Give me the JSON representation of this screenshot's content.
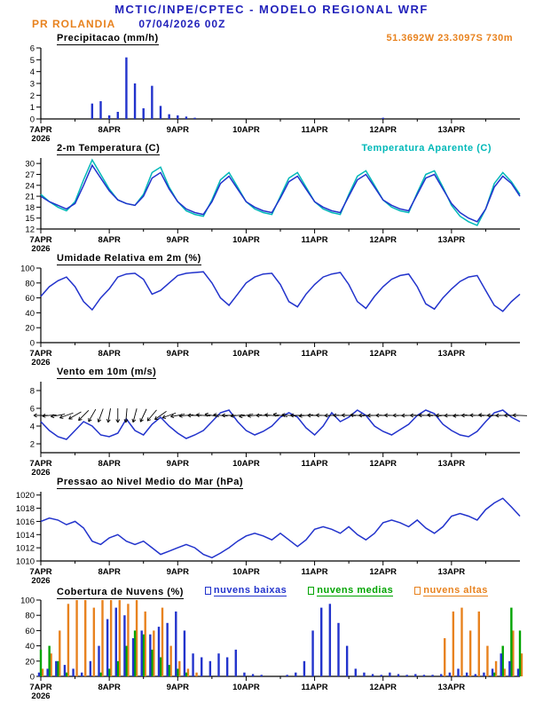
{
  "header": {
    "title": "MCTIC/INPE/CPTEC - MODELO REGIONAL WRF",
    "station": "PR ROLANDIA",
    "run": "07/04/2026 00Z",
    "location": "51.3692W 23.3097S 730m"
  },
  "colors": {
    "title_blue": "#2222bb",
    "orange": "#e8821e",
    "cyan": "#00b8b8",
    "line_blue": "#2233cc",
    "green": "#00a400",
    "black": "#000000"
  },
  "axis": {
    "hours_max": 168,
    "step_hours": 3,
    "xticks": [
      {
        "hour": 0,
        "label": "7APR",
        "sub": "2026"
      },
      {
        "hour": 24,
        "label": "8APR"
      },
      {
        "hour": 48,
        "label": "9APR"
      },
      {
        "hour": 72,
        "label": "10APR"
      },
      {
        "hour": 96,
        "label": "11APR"
      },
      {
        "hour": 120,
        "label": "12APR"
      },
      {
        "hour": 144,
        "label": "13APR"
      }
    ]
  },
  "chart_data": [
    {
      "type": "bar",
      "title": "Precipitacao (mm/h)",
      "ylim": [
        0,
        6
      ],
      "yticks": [
        0,
        1,
        2,
        3,
        4,
        5,
        6
      ],
      "series": [
        {
          "name": "precipitacao",
          "style": "bars",
          "color": "#2233cc",
          "offset": 0,
          "values": [
            0,
            0,
            0,
            0,
            0,
            0,
            1.3,
            1.5,
            0.3,
            0.6,
            5.2,
            3,
            0.9,
            2.8,
            1.1,
            0.4,
            0.3,
            0.2,
            0.1,
            0,
            0,
            0,
            0,
            0,
            0,
            0,
            0,
            0,
            0,
            0,
            0,
            0,
            0,
            0,
            0,
            0,
            0,
            0,
            0,
            0,
            0.1,
            0,
            0,
            0,
            0,
            0,
            0,
            0,
            0,
            0,
            0,
            0,
            0,
            0,
            0,
            0,
            0
          ]
        }
      ]
    },
    {
      "type": "line",
      "title": "2-m Temperatura (C)",
      "legend": "Temperatura Aparente (C)",
      "ylim": [
        12,
        31.5
      ],
      "yticks": [
        12,
        15,
        18,
        21,
        24,
        27,
        30
      ],
      "series": [
        {
          "name": "temperatura aparente",
          "style": "line",
          "color": "#00b8b8",
          "values": [
            21.5,
            19.5,
            18,
            17,
            19.5,
            25.5,
            31,
            27,
            23,
            20,
            19,
            18.5,
            21.5,
            27.5,
            29,
            23.5,
            19.5,
            17,
            16,
            15.5,
            20,
            25.5,
            27.5,
            23.5,
            19.5,
            17.5,
            16.5,
            16,
            21,
            26,
            27.5,
            23.5,
            19.5,
            17.5,
            16.5,
            16,
            21.5,
            26.5,
            28,
            24,
            20,
            18,
            17,
            16.5,
            22,
            27,
            28,
            23.5,
            18.5,
            15.5,
            14,
            13,
            17.5,
            24.5,
            27.5,
            25,
            21.5
          ]
        },
        {
          "name": "2-m temperatura",
          "style": "line",
          "color": "#2233cc",
          "values": [
            21,
            19.5,
            18.5,
            17.5,
            19,
            24,
            29.5,
            26,
            22.5,
            20,
            19,
            18.5,
            21,
            26,
            27.5,
            23,
            19.5,
            17.5,
            16.5,
            16,
            19.5,
            24.5,
            26.5,
            23,
            19.5,
            18,
            17,
            16.5,
            20.5,
            25,
            26.5,
            23,
            19.5,
            18,
            17,
            16.5,
            21,
            25.5,
            27,
            23.5,
            20,
            18.5,
            17.5,
            17,
            21.5,
            26,
            27,
            23,
            19,
            16.5,
            15,
            14,
            17.5,
            23.5,
            26.5,
            24.5,
            21
          ]
        }
      ]
    },
    {
      "type": "line",
      "title": "Umidade Relativa em 2m (%)",
      "ylim": [
        0,
        100
      ],
      "yticks": [
        0,
        20,
        40,
        60,
        80,
        100
      ],
      "series": [
        {
          "name": "umidade relativa",
          "style": "line",
          "color": "#2233cc",
          "values": [
            62,
            75,
            83,
            88,
            75,
            55,
            44,
            60,
            72,
            88,
            92,
            93,
            85,
            65,
            70,
            80,
            90,
            93,
            94,
            95,
            80,
            60,
            50,
            65,
            80,
            88,
            92,
            93,
            78,
            55,
            48,
            65,
            78,
            88,
            92,
            94,
            78,
            55,
            46,
            62,
            75,
            85,
            90,
            92,
            75,
            52,
            45,
            60,
            72,
            82,
            88,
            90,
            70,
            50,
            42,
            55,
            65
          ]
        }
      ]
    },
    {
      "type": "line",
      "title": "Vento em 10m (m/s)",
      "ylim": [
        1,
        9
      ],
      "yticks": [
        2,
        4,
        6,
        8
      ],
      "series": [
        {
          "name": "velocidade do vento",
          "style": "line",
          "color": "#2233cc",
          "values": [
            4.5,
            3.5,
            2.8,
            2.5,
            3.5,
            4.5,
            4,
            3,
            2.8,
            3.2,
            4.8,
            3.5,
            3,
            4.2,
            5,
            4,
            3.2,
            2.6,
            3,
            3.5,
            4.5,
            5.5,
            5.8,
            4.5,
            3.5,
            3,
            3.4,
            4,
            5,
            5.5,
            5,
            3.8,
            3,
            4,
            5.5,
            4.5,
            5,
            5.8,
            5.2,
            4,
            3.4,
            3,
            3.6,
            4.2,
            5.2,
            5.8,
            5.4,
            4.2,
            3.5,
            3,
            2.8,
            3.4,
            4.5,
            5.5,
            5.8,
            5,
            4.5
          ]
        },
        {
          "name": "direcao do vento",
          "style": "arrows",
          "color": "#000000",
          "anchor": 5.2,
          "values": [
            180,
            185,
            190,
            200,
            210,
            225,
            240,
            250,
            260,
            270,
            265,
            255,
            245,
            230,
            215,
            200,
            190,
            185,
            180,
            175,
            170,
            175,
            180,
            185,
            190,
            185,
            180,
            175,
            170,
            175,
            180,
            185,
            180,
            178,
            182,
            180,
            178,
            176,
            180,
            182,
            180,
            178,
            180,
            182,
            180,
            178,
            176,
            180,
            182,
            184,
            180,
            178,
            176,
            180,
            182,
            180,
            178
          ]
        }
      ]
    },
    {
      "type": "line",
      "title": "Pressao ao Nivel Medio do Mar (hPa)",
      "ylim": [
        1010,
        1020.5
      ],
      "yticks": [
        1010,
        1012,
        1014,
        1016,
        1018,
        1020
      ],
      "series": [
        {
          "name": "pressao ao nivel medio do mar",
          "style": "line",
          "color": "#2233cc",
          "values": [
            1016,
            1016.5,
            1016.2,
            1015.5,
            1016,
            1015,
            1013,
            1012.5,
            1013.5,
            1014,
            1013,
            1012.5,
            1013,
            1012,
            1011,
            1011.5,
            1012,
            1012.5,
            1012,
            1011,
            1010.5,
            1011.2,
            1012,
            1013,
            1013.8,
            1014.2,
            1013.8,
            1013.2,
            1014.2,
            1013.2,
            1012.2,
            1013.2,
            1014.8,
            1015.2,
            1014.8,
            1014.2,
            1015.2,
            1014,
            1013.2,
            1014.2,
            1015.8,
            1016.2,
            1015.8,
            1015.2,
            1016.2,
            1015,
            1014.2,
            1015.2,
            1016.8,
            1017.2,
            1016.8,
            1016.2,
            1017.8,
            1018.8,
            1019.5,
            1018.2,
            1016.8
          ]
        }
      ]
    },
    {
      "type": "bar",
      "title": "Cobertura de Nuvens (%)",
      "ylim": [
        0,
        100
      ],
      "yticks": [
        0,
        20,
        40,
        60,
        80,
        100
      ],
      "series": [
        {
          "name": "nuvens altas",
          "style": "bars",
          "color": "#e8821e",
          "offset": 2,
          "values": [
            10,
            30,
            60,
            95,
            100,
            100,
            90,
            100,
            100,
            100,
            95,
            100,
            85,
            60,
            90,
            40,
            20,
            10,
            5,
            0,
            0,
            0,
            0,
            0,
            0,
            0,
            0,
            0,
            0,
            0,
            0,
            0,
            0,
            0,
            0,
            0,
            0,
            0,
            0,
            0,
            0,
            0,
            0,
            0,
            0,
            0,
            0,
            50,
            85,
            90,
            60,
            85,
            40,
            20,
            10,
            60,
            30
          ]
        },
        {
          "name": "nuvens medias",
          "style": "bars",
          "color": "#00a400",
          "offset": 0,
          "values": [
            35,
            40,
            20,
            5,
            0,
            0,
            0,
            5,
            10,
            20,
            40,
            60,
            55,
            35,
            25,
            15,
            10,
            5,
            0,
            0,
            0,
            0,
            0,
            0,
            0,
            0,
            0,
            0,
            0,
            0,
            0,
            0,
            0,
            0,
            0,
            0,
            0,
            0,
            0,
            0,
            0,
            0,
            0,
            0,
            0,
            0,
            0,
            0,
            0,
            0,
            0,
            0,
            0,
            5,
            40,
            90,
            60
          ]
        },
        {
          "name": "nuvens baixas",
          "style": "bars",
          "color": "#2233cc",
          "offset": -2,
          "values": [
            5,
            10,
            20,
            15,
            10,
            5,
            20,
            40,
            75,
            90,
            80,
            50,
            60,
            55,
            65,
            70,
            85,
            60,
            30,
            25,
            20,
            30,
            25,
            35,
            5,
            3,
            2,
            0,
            0,
            2,
            5,
            20,
            60,
            90,
            95,
            70,
            40,
            10,
            5,
            3,
            2,
            5,
            3,
            2,
            3,
            2,
            2,
            3,
            5,
            10,
            5,
            3,
            5,
            10,
            30,
            20,
            10
          ]
        }
      ]
    }
  ]
}
